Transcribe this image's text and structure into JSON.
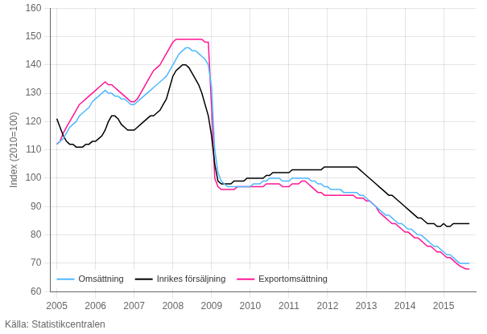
{
  "chart_data": {
    "type": "line",
    "ylabel": "Index (2010=100)",
    "annotations": [
      "Källa: Statistikcentralen"
    ],
    "xlim": [
      2004.83,
      2015.83
    ],
    "xticks": [
      2005,
      2006,
      2007,
      2008,
      2009,
      2010,
      2011,
      2012,
      2013,
      2014,
      2015
    ],
    "ylim": [
      60,
      160
    ],
    "yticks": [
      60,
      70,
      80,
      90,
      100,
      110,
      120,
      130,
      140,
      150,
      160
    ],
    "grid": true,
    "legend": "lower left",
    "x": [
      2005.0,
      2005.083,
      2005.167,
      2005.25,
      2005.333,
      2005.417,
      2005.5,
      2005.583,
      2005.667,
      2005.75,
      2005.833,
      2005.917,
      2006.0,
      2006.083,
      2006.167,
      2006.25,
      2006.333,
      2006.417,
      2006.5,
      2006.583,
      2006.667,
      2006.75,
      2006.833,
      2006.917,
      2007.0,
      2007.083,
      2007.167,
      2007.25,
      2007.333,
      2007.417,
      2007.5,
      2007.583,
      2007.667,
      2007.75,
      2007.833,
      2007.917,
      2008.0,
      2008.083,
      2008.167,
      2008.25,
      2008.333,
      2008.417,
      2008.5,
      2008.583,
      2008.667,
      2008.75,
      2008.833,
      2008.917,
      2009.0,
      2009.083,
      2009.167,
      2009.25,
      2009.333,
      2009.417,
      2009.5,
      2009.583,
      2009.667,
      2009.75,
      2009.833,
      2009.917,
      2010.0,
      2010.083,
      2010.167,
      2010.25,
      2010.333,
      2010.417,
      2010.5,
      2010.583,
      2010.667,
      2010.75,
      2010.833,
      2010.917,
      2011.0,
      2011.083,
      2011.167,
      2011.25,
      2011.333,
      2011.417,
      2011.5,
      2011.583,
      2011.667,
      2011.75,
      2011.833,
      2011.917,
      2012.0,
      2012.083,
      2012.167,
      2012.25,
      2012.333,
      2012.417,
      2012.5,
      2012.583,
      2012.667,
      2012.75,
      2012.833,
      2012.917,
      2013.0,
      2013.083,
      2013.167,
      2013.25,
      2013.333,
      2013.417,
      2013.5,
      2013.583,
      2013.667,
      2013.75,
      2013.833,
      2013.917,
      2014.0,
      2014.083,
      2014.167,
      2014.25,
      2014.333,
      2014.417,
      2014.5,
      2014.583,
      2014.667,
      2014.75,
      2014.833,
      2014.917,
      2015.0,
      2015.083,
      2015.167,
      2015.25,
      2015.333,
      2015.417,
      2015.5,
      2015.583,
      2015.667
    ],
    "series": [
      {
        "name": "Omsättning",
        "color": "#4DB8FF",
        "values": [
          112,
          113,
          114,
          116,
          118,
          119,
          120,
          122,
          123,
          124,
          125,
          127,
          128,
          129,
          130,
          131,
          130,
          130,
          129,
          129,
          128,
          128,
          127,
          126,
          126,
          127,
          128,
          129,
          130,
          131,
          132,
          133,
          134,
          135,
          136,
          138,
          140,
          142,
          144,
          145,
          146,
          146,
          145,
          145,
          144,
          143,
          142,
          140,
          132,
          110,
          102,
          99,
          98,
          97,
          97,
          97,
          97,
          97,
          97,
          97,
          97,
          98,
          98,
          98,
          99,
          99,
          100,
          100,
          100,
          100,
          99,
          99,
          99,
          100,
          100,
          100,
          100,
          100,
          100,
          99,
          99,
          98,
          98,
          97,
          97,
          96,
          96,
          96,
          96,
          95,
          95,
          95,
          95,
          95,
          94,
          94,
          93,
          92,
          91,
          90,
          89,
          88,
          87,
          87,
          86,
          85,
          84,
          84,
          83,
          82,
          82,
          81,
          80,
          80,
          79,
          78,
          77,
          76,
          76,
          75,
          74,
          73,
          73,
          72,
          71,
          70,
          70,
          70,
          70
        ]
      },
      {
        "name": "Inrikes försäljning",
        "color": "#000000",
        "values": [
          121,
          118,
          115,
          113,
          112,
          112,
          111,
          111,
          111,
          112,
          112,
          113,
          113,
          114,
          115,
          117,
          120,
          122,
          122,
          121,
          119,
          118,
          117,
          117,
          117,
          118,
          119,
          120,
          121,
          122,
          122,
          123,
          124,
          126,
          128,
          132,
          136,
          138,
          139,
          140,
          140,
          139,
          137,
          135,
          133,
          130,
          126,
          122,
          115,
          105,
          99,
          98,
          98,
          98,
          98,
          99,
          99,
          99,
          99,
          100,
          100,
          100,
          100,
          100,
          100,
          101,
          101,
          102,
          102,
          102,
          102,
          102,
          102,
          103,
          103,
          103,
          103,
          103,
          103,
          103,
          103,
          103,
          103,
          104,
          104,
          104,
          104,
          104,
          104,
          104,
          104,
          104,
          104,
          104,
          103,
          102,
          101,
          100,
          99,
          98,
          97,
          96,
          95,
          94,
          94,
          93,
          92,
          91,
          90,
          89,
          88,
          87,
          86,
          86,
          85,
          84,
          84,
          84,
          83,
          83,
          84,
          83,
          83,
          84,
          84,
          84,
          84,
          84,
          84
        ]
      },
      {
        "name": "Exportomsättning",
        "color": "#FF1493",
        "values": [
          112,
          113,
          116,
          118,
          120,
          122,
          124,
          126,
          127,
          128,
          129,
          130,
          131,
          132,
          133,
          134,
          133,
          133,
          132,
          131,
          130,
          129,
          128,
          127,
          127,
          128,
          130,
          132,
          134,
          136,
          138,
          139,
          140,
          142,
          144,
          146,
          148,
          149,
          149,
          149,
          149,
          149,
          149,
          149,
          149,
          149,
          148,
          148,
          125,
          100,
          97,
          96,
          96,
          96,
          96,
          96,
          97,
          97,
          97,
          97,
          97,
          97,
          97,
          97,
          97,
          98,
          98,
          98,
          98,
          98,
          97,
          97,
          97,
          98,
          98,
          98,
          99,
          99,
          98,
          97,
          96,
          95,
          95,
          94,
          94,
          94,
          94,
          94,
          94,
          94,
          94,
          94,
          94,
          93,
          93,
          93,
          92,
          92,
          91,
          90,
          88,
          87,
          86,
          85,
          84,
          84,
          83,
          82,
          81,
          81,
          80,
          79,
          79,
          78,
          77,
          76,
          76,
          75,
          74,
          74,
          73,
          72,
          72,
          71,
          70,
          69,
          68.5,
          68,
          68
        ]
      }
    ]
  }
}
